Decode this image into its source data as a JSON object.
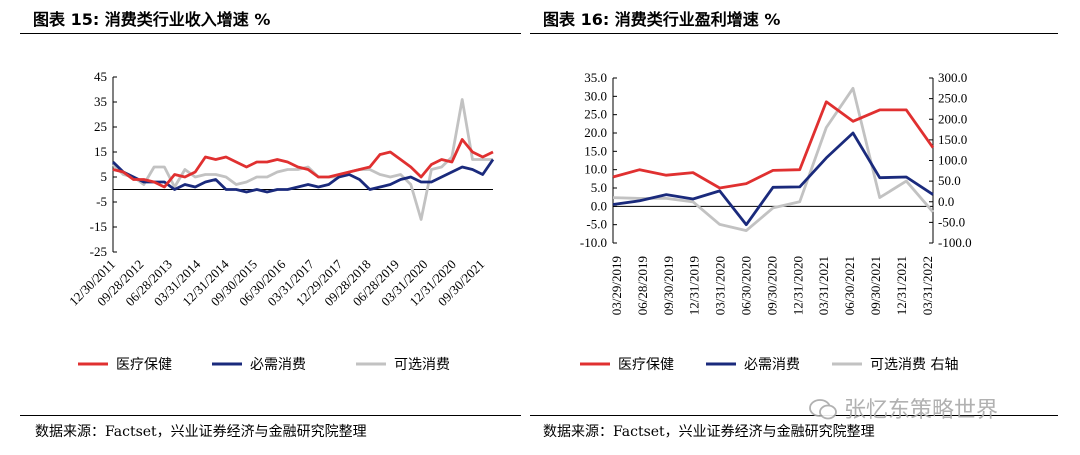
{
  "left": {
    "title": "图表 15:  消费类行业收入增速  %",
    "source": "数据来源：Factset，兴业证券经济与金融研究院整理"
  },
  "right": {
    "title": "图表 16:  消费类行业盈利增速  %",
    "source": "数据来源：Factset，兴业证券经济与金融研究院整理"
  },
  "watermark": {
    "text": "张忆东策略世界"
  },
  "colors": {
    "health": "#e03030",
    "staples": "#1a2a7c",
    "discretionary": "#c2c2c2"
  },
  "chart_data": [
    {
      "type": "line",
      "title": "消费类行业收入增速 %",
      "ylim": [
        -25,
        45
      ],
      "yticks": [
        "45",
        "35",
        "25",
        "15",
        "5",
        "-5",
        "-15",
        "-25"
      ],
      "ytick_values": [
        45,
        35,
        25,
        15,
        5,
        -5,
        -15,
        -25
      ],
      "xtick_labels": [
        "12/30/2011",
        "09/28/2012",
        "06/28/2013",
        "03/31/2014",
        "12/31/2014",
        "09/30/2015",
        "06/30/2016",
        "03/31/2017",
        "12/29/2017",
        "09/28/2018",
        "06/28/2019",
        "03/31/2020",
        "12/31/2020",
        "09/30/2021"
      ],
      "series": [
        {
          "name": "医疗保健",
          "values": [
            8,
            7,
            4,
            4,
            3,
            1,
            6,
            5,
            7,
            13,
            12,
            13,
            11,
            9,
            11,
            11,
            12,
            11,
            9,
            8,
            5,
            5,
            6,
            7,
            8,
            9,
            14,
            15,
            12,
            9,
            5,
            10,
            12,
            11,
            20,
            15,
            13,
            15
          ]
        },
        {
          "name": "必需消费",
          "values": [
            11,
            7,
            5,
            3,
            3,
            3,
            0,
            2,
            1,
            3,
            4,
            0,
            0,
            -1,
            0,
            -1,
            0,
            0,
            1,
            2,
            1,
            2,
            5,
            6,
            4,
            0,
            1,
            2,
            4,
            5,
            3,
            3,
            5,
            7,
            9,
            8,
            6,
            12
          ]
        },
        {
          "name": "可选消费",
          "values": [
            10,
            6,
            5,
            2,
            9,
            9,
            1,
            8,
            5,
            6,
            6,
            5,
            2,
            3,
            5,
            5,
            7,
            8,
            8,
            9,
            5,
            5,
            5,
            7,
            8,
            8,
            6,
            5,
            6,
            2,
            -12,
            8,
            9,
            13,
            36,
            12,
            12,
            12
          ]
        }
      ]
    },
    {
      "type": "line",
      "title": "消费类行业盈利增速 %",
      "ylim": [
        -10,
        35
      ],
      "yticks": [
        "35.0",
        "30.0",
        "25.0",
        "20.0",
        "15.0",
        "10.0",
        "5.0",
        "0.0",
        "-5.0",
        "-10.0"
      ],
      "ytick_values": [
        35,
        30,
        25,
        20,
        15,
        10,
        5,
        0,
        -5,
        -10
      ],
      "ylim_right": [
        -100,
        300
      ],
      "yticks_right": [
        "300.0",
        "250.0",
        "200.0",
        "150.0",
        "100.0",
        "50.0",
        "0.0",
        "-50.0",
        "-100.0"
      ],
      "ytick_values_right": [
        300,
        250,
        200,
        150,
        100,
        50,
        0,
        -50,
        -100
      ],
      "xtick_labels": [
        "03/29/2019",
        "06/28/2019",
        "09/30/2019",
        "12/31/2019",
        "03/31/2020",
        "06/30/2020",
        "09/30/2020",
        "12/31/2020",
        "03/31/2021",
        "06/30/2021",
        "09/30/2021",
        "12/31/2021",
        "03/31/2022"
      ],
      "series": [
        {
          "name": "医疗保健",
          "axis": "left",
          "values": [
            8,
            10,
            8.5,
            9.2,
            5,
            6.2,
            9.8,
            10,
            28.5,
            23.2,
            26.3,
            26.3,
            16
          ]
        },
        {
          "name": "必需消费",
          "axis": "left",
          "values": [
            0.5,
            1.5,
            3.2,
            2,
            4.2,
            -5,
            5.2,
            5.3,
            13.2,
            20,
            7.8,
            8,
            3.2
          ]
        },
        {
          "name": "可选消费 右轴",
          "axis": "right",
          "values": [
            10,
            8,
            8,
            0,
            -55,
            -70,
            -15,
            0,
            180,
            275,
            10,
            50,
            -25
          ]
        }
      ]
    }
  ]
}
